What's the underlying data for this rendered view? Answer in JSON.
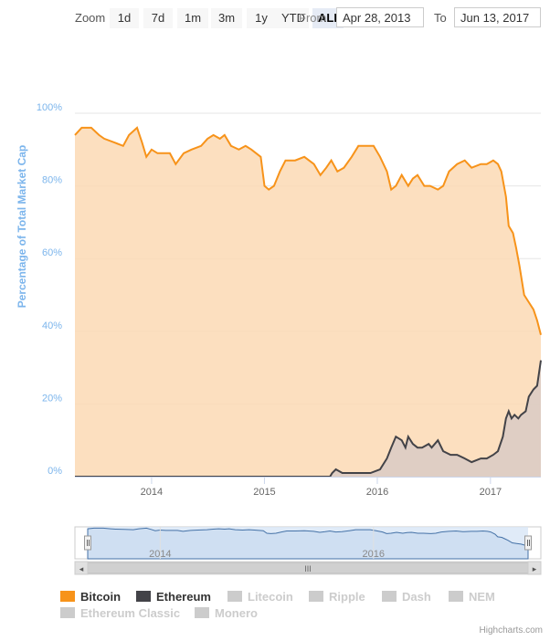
{
  "range_selector": {
    "zoom_label": "Zoom",
    "buttons": [
      "1d",
      "7d",
      "1m",
      "3m",
      "1y",
      "YTD",
      "ALL"
    ],
    "active_button": "ALL",
    "from_label": "From",
    "from_value": "Apr 28, 2013",
    "to_label": "To",
    "to_value": "Jun 13, 2017"
  },
  "chart_data": {
    "type": "area",
    "title": "",
    "xlabel": "",
    "ylabel": "Percentage of Total Market Cap",
    "x_range": [
      "2013-04-28",
      "2017-06-13"
    ],
    "x_ticks": [
      "2014",
      "2015",
      "2016",
      "2017"
    ],
    "ylim": [
      0,
      100
    ],
    "y_ticks": [
      "0%",
      "20%",
      "40%",
      "60%",
      "80%",
      "100%"
    ],
    "grid": true,
    "series": [
      {
        "name": "Bitcoin",
        "color": "#f7931a",
        "fill": "#fcd9b4",
        "points": [
          [
            "2013-04-28",
            94
          ],
          [
            "2013-05-20",
            96
          ],
          [
            "2013-06-20",
            96
          ],
          [
            "2013-07-15",
            94
          ],
          [
            "2013-08-01",
            93
          ],
          [
            "2013-09-01",
            92
          ],
          [
            "2013-10-01",
            91
          ],
          [
            "2013-10-20",
            94
          ],
          [
            "2013-11-15",
            96
          ],
          [
            "2013-12-01",
            92
          ],
          [
            "2013-12-15",
            88
          ],
          [
            "2014-01-01",
            90
          ],
          [
            "2014-01-20",
            89
          ],
          [
            "2014-02-10",
            89
          ],
          [
            "2014-03-01",
            89
          ],
          [
            "2014-03-20",
            86
          ],
          [
            "2014-04-15",
            89
          ],
          [
            "2014-05-10",
            90
          ],
          [
            "2014-06-10",
            91
          ],
          [
            "2014-07-01",
            93
          ],
          [
            "2014-07-20",
            94
          ],
          [
            "2014-08-10",
            93
          ],
          [
            "2014-08-25",
            94
          ],
          [
            "2014-09-15",
            91
          ],
          [
            "2014-10-10",
            90
          ],
          [
            "2014-11-01",
            91
          ],
          [
            "2014-11-20",
            90
          ],
          [
            "2014-12-20",
            88
          ],
          [
            "2015-01-01",
            80
          ],
          [
            "2015-01-15",
            79
          ],
          [
            "2015-02-01",
            80
          ],
          [
            "2015-02-20",
            84
          ],
          [
            "2015-03-10",
            87
          ],
          [
            "2015-04-10",
            87
          ],
          [
            "2015-05-10",
            88
          ],
          [
            "2015-06-10",
            86
          ],
          [
            "2015-07-01",
            83
          ],
          [
            "2015-07-20",
            85
          ],
          [
            "2015-08-05",
            87
          ],
          [
            "2015-08-25",
            84
          ],
          [
            "2015-09-15",
            85
          ],
          [
            "2015-10-10",
            88
          ],
          [
            "2015-11-01",
            91
          ],
          [
            "2015-12-01",
            91
          ],
          [
            "2015-12-20",
            91
          ],
          [
            "2016-01-10",
            88
          ],
          [
            "2016-02-01",
            84
          ],
          [
            "2016-02-15",
            79
          ],
          [
            "2016-03-01",
            80
          ],
          [
            "2016-03-20",
            83
          ],
          [
            "2016-04-10",
            80
          ],
          [
            "2016-04-25",
            82
          ],
          [
            "2016-05-10",
            83
          ],
          [
            "2016-06-01",
            80
          ],
          [
            "2016-06-20",
            80
          ],
          [
            "2016-07-15",
            79
          ],
          [
            "2016-08-01",
            80
          ],
          [
            "2016-08-20",
            84
          ],
          [
            "2016-09-15",
            86
          ],
          [
            "2016-10-10",
            87
          ],
          [
            "2016-11-01",
            85
          ],
          [
            "2016-12-01",
            86
          ],
          [
            "2016-12-20",
            86
          ],
          [
            "2017-01-10",
            87
          ],
          [
            "2017-01-25",
            86
          ],
          [
            "2017-02-05",
            84
          ],
          [
            "2017-02-20",
            77
          ],
          [
            "2017-03-01",
            69
          ],
          [
            "2017-03-15",
            67
          ],
          [
            "2017-03-25",
            63
          ],
          [
            "2017-04-05",
            58
          ],
          [
            "2017-04-20",
            50
          ],
          [
            "2017-05-05",
            48
          ],
          [
            "2017-05-20",
            46
          ],
          [
            "2017-06-01",
            43
          ],
          [
            "2017-06-13",
            39
          ]
        ]
      },
      {
        "name": "Ethereum",
        "color": "#434348",
        "fill": "#d9cbc4",
        "points": [
          [
            "2013-04-28",
            0
          ],
          [
            "2015-08-01",
            0
          ],
          [
            "2015-08-08",
            1
          ],
          [
            "2015-08-20",
            2
          ],
          [
            "2015-09-10",
            1
          ],
          [
            "2015-10-10",
            1
          ],
          [
            "2015-11-10",
            1
          ],
          [
            "2015-12-10",
            1
          ],
          [
            "2016-01-10",
            2
          ],
          [
            "2016-02-01",
            5
          ],
          [
            "2016-02-15",
            8
          ],
          [
            "2016-03-01",
            11
          ],
          [
            "2016-03-20",
            10
          ],
          [
            "2016-04-01",
            8
          ],
          [
            "2016-04-10",
            11
          ],
          [
            "2016-04-25",
            9
          ],
          [
            "2016-05-10",
            8
          ],
          [
            "2016-05-25",
            8
          ],
          [
            "2016-06-15",
            9
          ],
          [
            "2016-06-25",
            8
          ],
          [
            "2016-07-15",
            10
          ],
          [
            "2016-08-01",
            7
          ],
          [
            "2016-08-25",
            6
          ],
          [
            "2016-09-15",
            6
          ],
          [
            "2016-10-10",
            5
          ],
          [
            "2016-11-01",
            4
          ],
          [
            "2016-12-01",
            5
          ],
          [
            "2016-12-20",
            5
          ],
          [
            "2017-01-10",
            6
          ],
          [
            "2017-01-25",
            7
          ],
          [
            "2017-02-10",
            11
          ],
          [
            "2017-02-20",
            16
          ],
          [
            "2017-03-01",
            18
          ],
          [
            "2017-03-10",
            16
          ],
          [
            "2017-03-20",
            17
          ],
          [
            "2017-04-01",
            16
          ],
          [
            "2017-04-10",
            17
          ],
          [
            "2017-04-25",
            18
          ],
          [
            "2017-05-05",
            22
          ],
          [
            "2017-05-20",
            24
          ],
          [
            "2017-06-01",
            25
          ],
          [
            "2017-06-13",
            32
          ]
        ]
      }
    ],
    "navigator_ticks": [
      "2014",
      "2016"
    ],
    "legend_placement": "bottom",
    "legend": [
      {
        "name": "Bitcoin",
        "color": "#f7931a",
        "visible": true
      },
      {
        "name": "Ethereum",
        "color": "#434348",
        "visible": true
      },
      {
        "name": "Litecoin",
        "color": "#cccccc",
        "visible": false
      },
      {
        "name": "Ripple",
        "color": "#cccccc",
        "visible": false
      },
      {
        "name": "Dash",
        "color": "#cccccc",
        "visible": false
      },
      {
        "name": "NEM",
        "color": "#cccccc",
        "visible": false
      },
      {
        "name": "Ethereum Classic",
        "color": "#cccccc",
        "visible": false
      },
      {
        "name": "Monero",
        "color": "#cccccc",
        "visible": false
      }
    ]
  },
  "scrollbar": {
    "grip_glyph": "III",
    "left_arrow": "◂",
    "right_arrow": "▸"
  },
  "credit": "Highcharts.com"
}
